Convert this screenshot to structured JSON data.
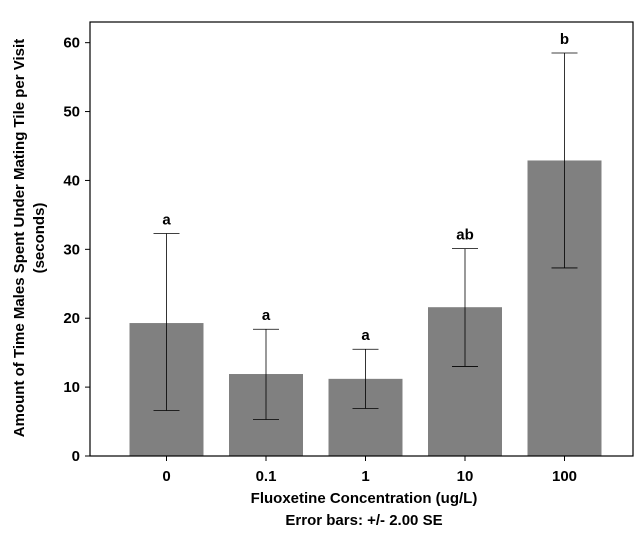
{
  "chart_data": {
    "type": "bar",
    "categories": [
      "0",
      "0.1",
      "1",
      "10",
      "100"
    ],
    "values": [
      19.3,
      11.9,
      11.2,
      21.6,
      42.9
    ],
    "error_low": [
      6.6,
      5.3,
      6.9,
      13.0,
      27.3
    ],
    "error_high": [
      32.3,
      18.4,
      15.5,
      30.1,
      58.5
    ],
    "significance_labels": [
      "a",
      "a",
      "a",
      "ab",
      "b"
    ],
    "ylim": [
      0,
      63
    ],
    "yticks": [
      0,
      10,
      20,
      30,
      40,
      50,
      60
    ],
    "xlabel": "Fluoxetine Concentration (ug/L)",
    "xlabel_note": "Error bars: +/- 2.00 SE",
    "ylabel": "Amount of Time Males Spent Under Mating Tile per Visit",
    "ylabel_line2": "(seconds)",
    "grid": false,
    "bar_color": "#808080",
    "error_bar_color": "#000000"
  }
}
